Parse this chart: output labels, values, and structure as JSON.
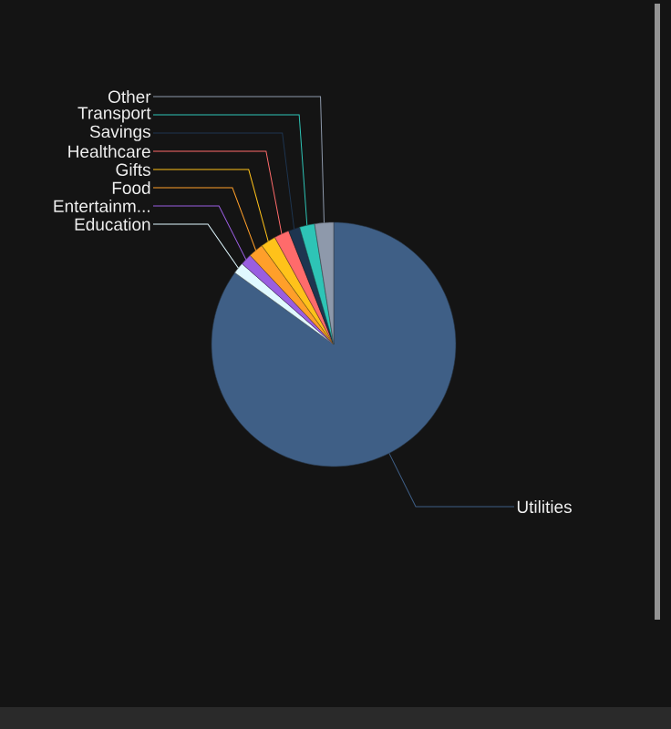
{
  "chart_data": {
    "type": "pie",
    "categories": [
      "Utilities",
      "Education",
      "Entertainm...",
      "Food",
      "Gifts",
      "Healthcare",
      "Savings",
      "Transport",
      "Other"
    ],
    "values": [
      85,
      1.5,
      1.5,
      2,
      2,
      2,
      1.5,
      2,
      2.5
    ],
    "colors": [
      "#3f5f86",
      "#e0f8ff",
      "#9a5ee0",
      "#ff9f2a",
      "#ffc21a",
      "#ff6b6b",
      "#1e3550",
      "#2ec4b6",
      "#8e99ab"
    ]
  }
}
